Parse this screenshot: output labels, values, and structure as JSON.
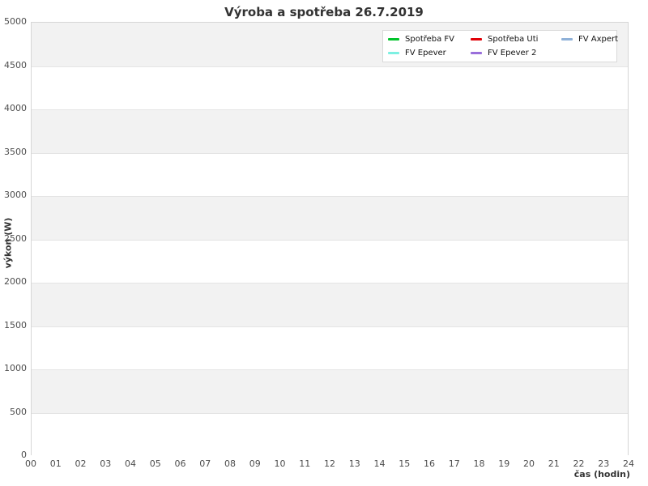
{
  "title": "Výroba a spotřeba 26.7.2019",
  "axes": {
    "ylabel": "výkon (W)",
    "xlabel": "čas (hodin)"
  },
  "legend": {
    "items": [
      {
        "label": "Spotřeba FV",
        "color": "#00c32a"
      },
      {
        "label": "FV Epever",
        "color": "#7df0e2"
      },
      {
        "label": "Spotřeba Uti",
        "color": "#e00007"
      },
      {
        "label": "FV Epever 2",
        "color": "#9a6fdb"
      },
      {
        "label": "FV Axpert",
        "color": "#8fb1d8"
      }
    ],
    "position": "top-right",
    "columns": 3
  },
  "colors": {
    "band_gray": "#f2f2f2",
    "band_white": "#ffffff",
    "grid_line": "#e4e4e4",
    "spine": "#d6d6d6",
    "tick_text": "#4d4d4d",
    "title_text": "#333333"
  },
  "chart_data": {
    "type": "line",
    "title": "Výroba a spotřeba 26.7.2019",
    "xlabel": "čas (hodin)",
    "ylabel": "výkon (W)",
    "xlim": [
      0,
      24
    ],
    "ylim": [
      0,
      5000
    ],
    "x_ticks": [
      "00",
      "01",
      "02",
      "03",
      "04",
      "05",
      "06",
      "07",
      "08",
      "09",
      "10",
      "11",
      "12",
      "13",
      "14",
      "15",
      "16",
      "17",
      "18",
      "19",
      "20",
      "21",
      "22",
      "23",
      "24"
    ],
    "y_ticks": [
      0,
      500,
      1000,
      1500,
      2000,
      2500,
      3000,
      3500,
      4000,
      4500,
      5000
    ],
    "grid": "horizontal alternating bands every 500, gray on 500-1000, 1500-2000, 2500-3000, 3500-4000, 4500-5000",
    "legend_position": "top-right inside plot",
    "series": [
      {
        "name": "Spotřeba FV",
        "color": "#00c32a",
        "x": [],
        "values": []
      },
      {
        "name": "Spotřeba Uti",
        "color": "#e00007",
        "x": [],
        "values": []
      },
      {
        "name": "FV Axpert",
        "color": "#8fb1d8",
        "x": [],
        "values": []
      },
      {
        "name": "FV Epever",
        "color": "#7df0e2",
        "x": [],
        "values": []
      },
      {
        "name": "FV Epever 2",
        "color": "#9a6fdb",
        "x": [],
        "values": []
      }
    ]
  }
}
